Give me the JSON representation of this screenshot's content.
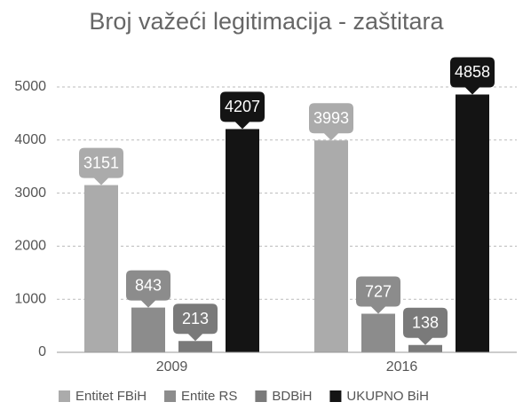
{
  "chart_data": {
    "type": "bar",
    "title": "Broj važeći legitimacija - zaštitara",
    "categories": [
      "2009",
      "2016"
    ],
    "series": [
      {
        "name": "Entitet FBiH",
        "color": "#ababab",
        "values": [
          3151,
          3993
        ]
      },
      {
        "name": "Entite RS",
        "color": "#8c8c8c",
        "values": [
          843,
          727
        ]
      },
      {
        "name": "BDBiH",
        "color": "#7a7a7a",
        "values": [
          213,
          138
        ]
      },
      {
        "name": "UKUPNO BiH",
        "color": "#141414",
        "values": [
          4207,
          4858
        ]
      }
    ],
    "ylim": [
      0,
      5000
    ],
    "yticks": [
      0,
      1000,
      2000,
      3000,
      4000,
      5000
    ],
    "grid": true,
    "legend": "bottom"
  }
}
